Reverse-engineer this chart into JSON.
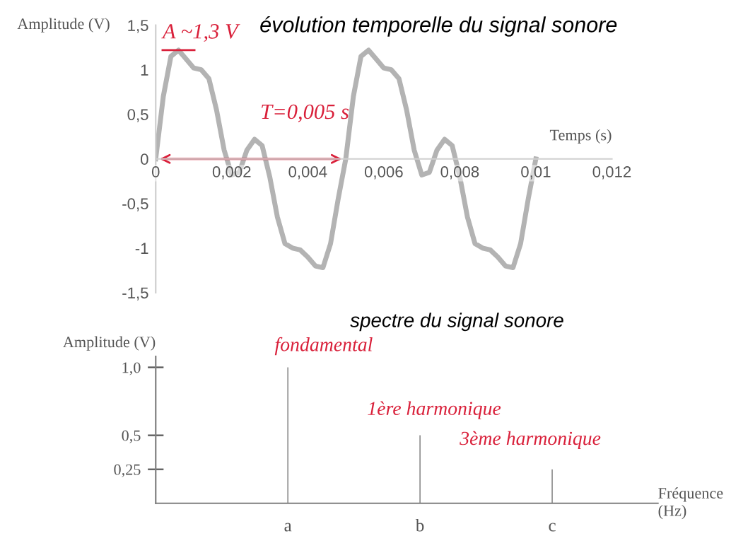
{
  "chart_data": [
    {
      "type": "line",
      "title": "évolution temporelle du signal sonore",
      "xlabel": "Temps (s)",
      "ylabel": "Amplitude (V)",
      "x": [
        0,
        0.0002,
        0.0004,
        0.0006,
        0.0008,
        0.001,
        0.0012,
        0.0014,
        0.0016,
        0.0018,
        0.002,
        0.0022,
        0.0024,
        0.0026,
        0.0028,
        0.003,
        0.0032,
        0.0034,
        0.0036,
        0.0038,
        0.004,
        0.0042,
        0.0044,
        0.0046,
        0.0048,
        0.005,
        0.0052,
        0.0054,
        0.0056,
        0.0058,
        0.006,
        0.0062,
        0.0064,
        0.0066,
        0.0068,
        0.007,
        0.0072,
        0.0074,
        0.0076,
        0.0078,
        0.008,
        0.0082,
        0.0084,
        0.0086,
        0.0088,
        0.009,
        0.0092,
        0.0094,
        0.0096,
        0.0098,
        0.01
      ],
      "series": [
        {
          "color": "#b3b3b3",
          "values": [
            0,
            0.7,
            1.15,
            1.22,
            1.12,
            1.02,
            1.0,
            0.9,
            0.55,
            0.1,
            -0.18,
            -0.15,
            0.1,
            0.22,
            0.15,
            -0.2,
            -0.65,
            -0.95,
            -1.0,
            -1.02,
            -1.1,
            -1.2,
            -1.22,
            -0.95,
            -0.45,
            0,
            0.7,
            1.15,
            1.22,
            1.12,
            1.02,
            1.0,
            0.9,
            0.55,
            0.1,
            -0.18,
            -0.15,
            0.1,
            0.22,
            0.15,
            -0.2,
            -0.65,
            -0.95,
            -1.0,
            -1.02,
            -1.1,
            -1.2,
            -1.22,
            -0.95,
            -0.45,
            0
          ]
        }
      ],
      "xlim": [
        0,
        0.012
      ],
      "ylim": [
        -1.5,
        1.5
      ],
      "xticks": [
        0,
        {
          "value": 0.002,
          "label": "0,002"
        },
        {
          "value": 0.004,
          "label": "0,004"
        },
        {
          "value": 0.006,
          "label": "0,006"
        },
        {
          "value": 0.008,
          "label": "0,008"
        },
        {
          "value": 0.01,
          "label": "0,01"
        },
        {
          "value": 0.012,
          "label": "0,012"
        }
      ],
      "yticks": [
        {
          "value": -1.5,
          "label": "-1,5"
        },
        -1,
        {
          "value": -0.5,
          "label": "-0,5"
        },
        0,
        {
          "value": 0.5,
          "label": "0,5"
        },
        1,
        {
          "value": 1.5,
          "label": "1,5"
        }
      ],
      "annotations": [
        {
          "text": "A ~1,3 V",
          "x": 0.0006,
          "y": 1.22
        },
        {
          "text": "T=0,005 s",
          "x": 0.005,
          "y": 0
        }
      ],
      "grid": false,
      "legend": false,
      "line_style": "solid",
      "marker": "none"
    },
    {
      "type": "bar",
      "title": "spectre du signal sonore",
      "xlabel": "Fréquence\n(Hz)",
      "ylabel": "Amplitude (V)",
      "categories": [
        "a",
        "b",
        "c"
      ],
      "values": [
        1.0,
        0.5,
        0.25
      ],
      "color": "#808080",
      "ylim": [
        0,
        1.08
      ],
      "yticks": [
        {
          "value": 0.25,
          "label": "0,25"
        },
        {
          "value": 0.5,
          "label": "0,5"
        },
        {
          "value": 1.0,
          "label": "1,0"
        }
      ],
      "annotations": [
        {
          "text": "fondamental",
          "x": "a",
          "y": 1.0
        },
        {
          "text": "1ère harmonique",
          "x": "b",
          "y": 0.5
        },
        {
          "text": "3ème harmonique",
          "x": "c",
          "y": 0.25
        }
      ],
      "grid": false,
      "legend": false
    }
  ]
}
